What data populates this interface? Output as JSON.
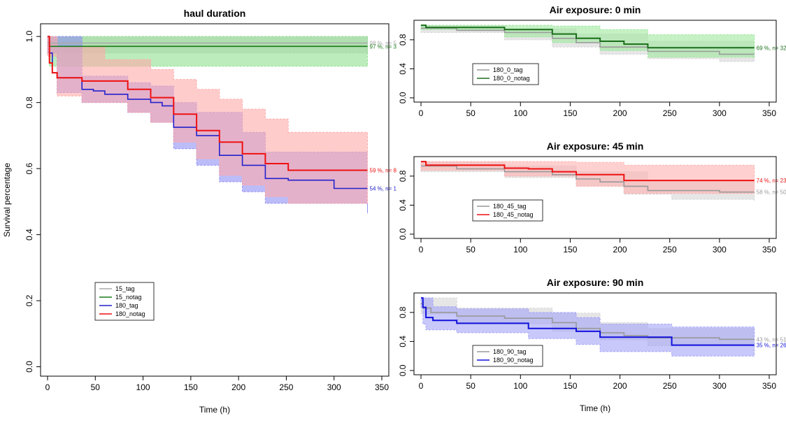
{
  "chart_data": [
    {
      "type": "line",
      "title": "haul duration",
      "xlabel": "Time (h)",
      "ylabel": "Survival percentage",
      "xlim": [
        0,
        350
      ],
      "ylim": [
        0,
        1.0
      ],
      "xticks": [
        0,
        50,
        100,
        150,
        200,
        250,
        300,
        350
      ],
      "yticks": [
        0.0,
        0.2,
        0.4,
        0.6,
        0.8,
        1.0
      ],
      "legend_position": "bottom-left",
      "series": [
        {
          "name": "15_tag",
          "color": "#aaaaaa",
          "band_color": "#cfcfcf",
          "x": [
            0,
            335
          ],
          "y": [
            0.98,
            0.98
          ],
          "lower": [
            [
              0,
              0.95
            ],
            [
              335,
              0.95
            ]
          ],
          "upper": [
            [
              0,
              1.0
            ],
            [
              335,
              1.0
            ]
          ],
          "end_label": "98 %, n= 5"
        },
        {
          "name": "15_notag",
          "color": "#1a7a1a",
          "band_color": "#8fe08f",
          "x": [
            0,
            2,
            335
          ],
          "y": [
            1.0,
            0.97,
            0.97
          ],
          "lower": [
            [
              0,
              1.0
            ],
            [
              2,
              0.91
            ],
            [
              335,
              0.91
            ]
          ],
          "upper": [
            [
              0,
              1.0
            ],
            [
              335,
              1.0
            ]
          ],
          "end_label": "97 %, n= 3"
        },
        {
          "name": "180_tag",
          "color": "#2222cc",
          "band_color": "#8f8ff5",
          "x": [
            0,
            2,
            5,
            10,
            36,
            48,
            60,
            84,
            108,
            120,
            132,
            156,
            180,
            204,
            228,
            252,
            300,
            335
          ],
          "y": [
            1.0,
            0.95,
            0.89,
            0.875,
            0.84,
            0.835,
            0.825,
            0.81,
            0.8,
            0.79,
            0.725,
            0.7,
            0.64,
            0.61,
            0.57,
            0.565,
            0.54,
            0.54
          ],
          "lower": [
            [
              0,
              0.95
            ],
            [
              10,
              0.83
            ],
            [
              36,
              0.8
            ],
            [
              84,
              0.77
            ],
            [
              108,
              0.74
            ],
            [
              132,
              0.66
            ],
            [
              156,
              0.61
            ],
            [
              180,
              0.56
            ],
            [
              204,
              0.53
            ],
            [
              228,
              0.495
            ],
            [
              335,
              0.465
            ]
          ],
          "upper": [
            [
              0,
              1.0
            ],
            [
              36,
              0.88
            ],
            [
              84,
              0.86
            ],
            [
              108,
              0.85
            ],
            [
              132,
              0.8
            ],
            [
              156,
              0.77
            ],
            [
              204,
              0.71
            ],
            [
              228,
              0.65
            ],
            [
              335,
              0.62
            ]
          ],
          "end_label": "54 %, n= 1"
        },
        {
          "name": "180_notag",
          "color": "#ee1111",
          "band_color": "#ffaaaa",
          "x": [
            0,
            2,
            5,
            10,
            36,
            84,
            108,
            132,
            156,
            180,
            204,
            228,
            252,
            335
          ],
          "y": [
            1.0,
            0.92,
            0.89,
            0.875,
            0.865,
            0.84,
            0.815,
            0.765,
            0.715,
            0.68,
            0.645,
            0.615,
            0.595,
            0.595
          ],
          "lower": [
            [
              0,
              0.94
            ],
            [
              10,
              0.82
            ],
            [
              36,
              0.8
            ],
            [
              84,
              0.77
            ],
            [
              108,
              0.74
            ],
            [
              132,
              0.68
            ],
            [
              156,
              0.63
            ],
            [
              180,
              0.58
            ],
            [
              204,
              0.55
            ],
            [
              228,
              0.515
            ],
            [
              252,
              0.495
            ],
            [
              335,
              0.495
            ]
          ],
          "upper": [
            [
              0,
              1.0
            ],
            [
              10,
              0.97
            ],
            [
              60,
              0.93
            ],
            [
              108,
              0.9
            ],
            [
              132,
              0.87
            ],
            [
              156,
              0.84
            ],
            [
              180,
              0.81
            ],
            [
              204,
              0.78
            ],
            [
              228,
              0.75
            ],
            [
              252,
              0.71
            ],
            [
              335,
              0.71
            ]
          ],
          "end_label": "59 %, n= 8"
        }
      ]
    },
    {
      "type": "line",
      "title": "Air exposure: 0 min",
      "xlabel": "",
      "ylabel": "",
      "xlim": [
        0,
        350
      ],
      "ylim": [
        0,
        1.0
      ],
      "xticks": [
        0,
        50,
        100,
        150,
        200,
        250,
        300,
        350
      ],
      "yticks": [
        0.0,
        0.4,
        0.8
      ],
      "legend_position": "left",
      "series": [
        {
          "name": "180_0_tag",
          "color": "#999999",
          "band_color": "#d6d6d6",
          "x": [
            0,
            36,
            84,
            132,
            156,
            180,
            228,
            300,
            335
          ],
          "y": [
            0.96,
            0.93,
            0.9,
            0.82,
            0.76,
            0.7,
            0.64,
            0.6,
            0.6
          ],
          "lower": [
            [
              0,
              0.9
            ],
            [
              84,
              0.8
            ],
            [
              132,
              0.7
            ],
            [
              180,
              0.6
            ],
            [
              228,
              0.54
            ],
            [
              300,
              0.5
            ],
            [
              335,
              0.5
            ]
          ],
          "upper": [
            [
              0,
              1.0
            ],
            [
              84,
              0.95
            ],
            [
              156,
              0.88
            ],
            [
              228,
              0.78
            ],
            [
              335,
              0.74
            ]
          ],
          "end_label": ""
        },
        {
          "name": "180_0_notag",
          "color": "#1a6e1a",
          "band_color": "#9fe79f",
          "x": [
            0,
            5,
            84,
            132,
            156,
            180,
            204,
            228,
            335
          ],
          "y": [
            1.0,
            0.97,
            0.94,
            0.88,
            0.82,
            0.78,
            0.74,
            0.69,
            0.69
          ],
          "lower": [
            [
              0,
              0.94
            ],
            [
              84,
              0.84
            ],
            [
              132,
              0.76
            ],
            [
              180,
              0.65
            ],
            [
              228,
              0.56
            ],
            [
              335,
              0.55
            ]
          ],
          "upper": [
            [
              0,
              1.0
            ],
            [
              132,
              0.99
            ],
            [
              180,
              0.94
            ],
            [
              228,
              0.87
            ],
            [
              335,
              0.87
            ]
          ],
          "end_label": "69 %, n= 32"
        }
      ]
    },
    {
      "type": "line",
      "title": "Air exposure: 45 min",
      "xlabel": "",
      "ylabel": "",
      "xlim": [
        0,
        350
      ],
      "ylim": [
        0,
        1.0
      ],
      "xticks": [
        0,
        50,
        100,
        150,
        200,
        250,
        300,
        350
      ],
      "yticks": [
        0.0,
        0.4,
        0.8
      ],
      "legend_position": "left",
      "series": [
        {
          "name": "180_45_tag",
          "color": "#999999",
          "band_color": "#d6d6d6",
          "x": [
            0,
            36,
            84,
            132,
            156,
            180,
            204,
            228,
            300,
            335
          ],
          "y": [
            0.94,
            0.9,
            0.86,
            0.82,
            0.76,
            0.72,
            0.66,
            0.6,
            0.58,
            0.58
          ],
          "lower": [
            [
              0,
              0.86
            ],
            [
              84,
              0.78
            ],
            [
              156,
              0.66
            ],
            [
              204,
              0.55
            ],
            [
              252,
              0.48
            ],
            [
              335,
              0.46
            ]
          ],
          "upper": [
            [
              0,
              1.0
            ],
            [
              84,
              0.94
            ],
            [
              156,
              0.86
            ],
            [
              228,
              0.74
            ],
            [
              335,
              0.7
            ]
          ],
          "end_label": "58 %, n= 50"
        },
        {
          "name": "180_45_notag",
          "color": "#ee1111",
          "band_color": "#ffb0b0",
          "x": [
            0,
            5,
            84,
            108,
            132,
            156,
            204,
            335
          ],
          "y": [
            1.0,
            0.95,
            0.91,
            0.9,
            0.86,
            0.82,
            0.74,
            0.74
          ],
          "lower": [
            [
              0,
              0.88
            ],
            [
              84,
              0.8
            ],
            [
              156,
              0.66
            ],
            [
              204,
              0.56
            ],
            [
              335,
              0.56
            ]
          ],
          "upper": [
            [
              0,
              1.0
            ],
            [
              156,
              0.99
            ],
            [
              204,
              0.95
            ],
            [
              335,
              0.95
            ]
          ],
          "end_label": "74 %, n= 23"
        }
      ]
    },
    {
      "type": "line",
      "title": "Air exposure: 90 min",
      "xlabel": "Time (h)",
      "ylabel": "",
      "xlim": [
        0,
        350
      ],
      "ylim": [
        0,
        1.0
      ],
      "xticks": [
        0,
        50,
        100,
        150,
        200,
        250,
        300,
        350
      ],
      "yticks": [
        0.0,
        0.4,
        0.8
      ],
      "legend_position": "bottom-left",
      "series": [
        {
          "name": "180_90_tag",
          "color": "#999999",
          "band_color": "#d6d6d6",
          "x": [
            0,
            2,
            10,
            36,
            84,
            132,
            156,
            180,
            204,
            228,
            300,
            335
          ],
          "y": [
            0.92,
            0.86,
            0.8,
            0.75,
            0.72,
            0.66,
            0.58,
            0.52,
            0.48,
            0.45,
            0.43,
            0.43
          ],
          "lower": [
            [
              0,
              0.78
            ],
            [
              36,
              0.64
            ],
            [
              132,
              0.54
            ],
            [
              180,
              0.42
            ],
            [
              228,
              0.34
            ],
            [
              335,
              0.32
            ]
          ],
          "upper": [
            [
              0,
              1.0
            ],
            [
              36,
              0.86
            ],
            [
              132,
              0.79
            ],
            [
              180,
              0.66
            ],
            [
              228,
              0.58
            ],
            [
              335,
              0.58
            ]
          ],
          "end_label": "43 %, n= 51"
        },
        {
          "name": "180_90_notag",
          "color": "#1111dd",
          "band_color": "#a3a3f7",
          "x": [
            0,
            2,
            5,
            12,
            36,
            108,
            156,
            180,
            252,
            335
          ],
          "y": [
            1.0,
            0.87,
            0.73,
            0.69,
            0.65,
            0.58,
            0.54,
            0.46,
            0.35,
            0.35
          ],
          "lower": [
            [
              0,
              0.87
            ],
            [
              2,
              0.64
            ],
            [
              5,
              0.56
            ],
            [
              36,
              0.52
            ],
            [
              108,
              0.44
            ],
            [
              156,
              0.36
            ],
            [
              180,
              0.26
            ],
            [
              252,
              0.2
            ],
            [
              335,
              0.2
            ]
          ],
          "upper": [
            [
              0,
              1.0
            ],
            [
              12,
              0.88
            ],
            [
              36,
              0.85
            ],
            [
              108,
              0.8
            ],
            [
              156,
              0.73
            ],
            [
              180,
              0.64
            ],
            [
              252,
              0.6
            ],
            [
              335,
              0.6
            ]
          ],
          "end_label": "35 %, n= 26"
        }
      ]
    }
  ]
}
